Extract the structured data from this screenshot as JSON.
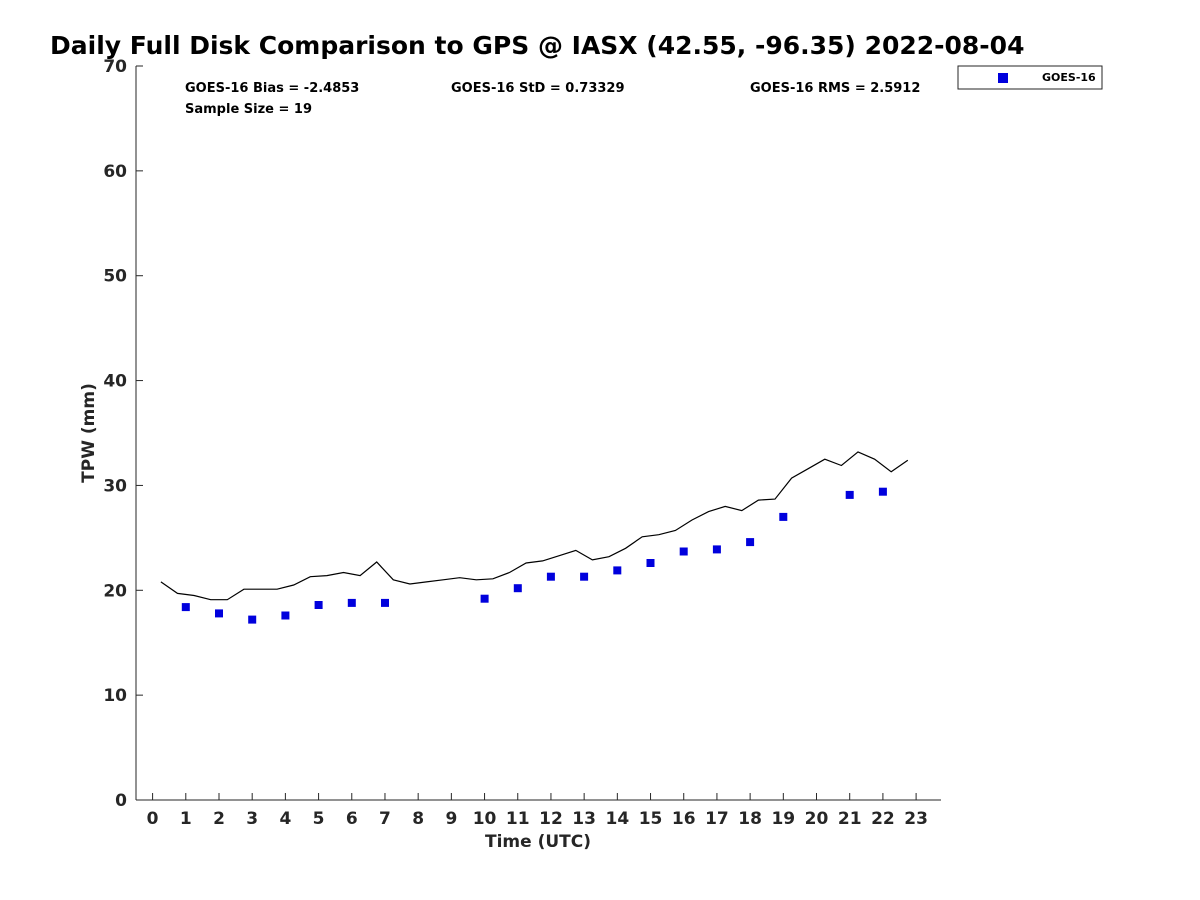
{
  "colors": {
    "marker": "#0000dd",
    "line": "#000000",
    "axis": "#262626"
  },
  "chart_data": {
    "type": "scatter",
    "title": "Daily Full Disk Comparison to GPS @ IASX (42.55, -96.35) 2022-08-04",
    "xlabel": "Time (UTC)",
    "ylabel": "TPW (mm)",
    "xlim": [
      -0.5,
      23.75
    ],
    "ylim": [
      0,
      70
    ],
    "xticks": [
      0,
      1,
      2,
      3,
      4,
      5,
      6,
      7,
      8,
      9,
      10,
      11,
      12,
      13,
      14,
      15,
      16,
      17,
      18,
      19,
      20,
      21,
      22,
      23
    ],
    "yticks": [
      0,
      10,
      20,
      30,
      40,
      50,
      60,
      70
    ],
    "grid": false,
    "legend_position": "outside-top-right",
    "stats": {
      "bias": "GOES-16 Bias = -2.4853",
      "std": "GOES-16 StD = 0.73329",
      "rms": "GOES-16 RMS = 2.5912",
      "sample": "Sample Size = 19"
    },
    "series": [
      {
        "name": "GOES-16",
        "kind": "marker",
        "x": [
          1,
          2,
          3,
          4,
          5,
          6,
          7,
          10,
          11,
          12,
          13,
          14,
          15,
          16,
          17,
          18,
          19,
          21,
          22
        ],
        "y": [
          18.4,
          17.8,
          17.2,
          17.6,
          18.6,
          18.8,
          18.8,
          19.2,
          20.2,
          21.3,
          21.3,
          21.9,
          22.6,
          23.7,
          23.9,
          24.6,
          27.0,
          29.1,
          29.4
        ]
      },
      {
        "kind": "line",
        "x": [
          0.25,
          0.75,
          1.25,
          1.75,
          2.25,
          2.75,
          3.25,
          3.75,
          4.25,
          4.75,
          5.25,
          5.75,
          6.25,
          6.75,
          7.25,
          7.75,
          8.25,
          8.75,
          9.25,
          9.75,
          10.25,
          10.75,
          11.25,
          11.75,
          12.25,
          12.75,
          13.25,
          13.75,
          14.25,
          14.75,
          15.25,
          15.75,
          16.25,
          16.75,
          17.25,
          17.75,
          18.25,
          18.75,
          19.25,
          19.75,
          20.25,
          20.75,
          21.25,
          21.75,
          22.25,
          22.75
        ],
        "y": [
          20.8,
          19.7,
          19.5,
          19.1,
          19.1,
          20.1,
          20.1,
          20.1,
          20.5,
          21.3,
          21.4,
          21.7,
          21.4,
          22.7,
          21.0,
          20.6,
          20.8,
          21.0,
          21.2,
          21.0,
          21.1,
          21.7,
          22.6,
          22.8,
          23.3,
          23.8,
          22.9,
          23.2,
          24.0,
          25.1,
          25.3,
          25.7,
          26.7,
          27.5,
          28.0,
          27.6,
          28.6,
          28.7,
          30.7,
          31.6,
          32.5,
          31.9,
          33.2,
          32.5,
          31.3,
          32.4
        ]
      }
    ]
  }
}
